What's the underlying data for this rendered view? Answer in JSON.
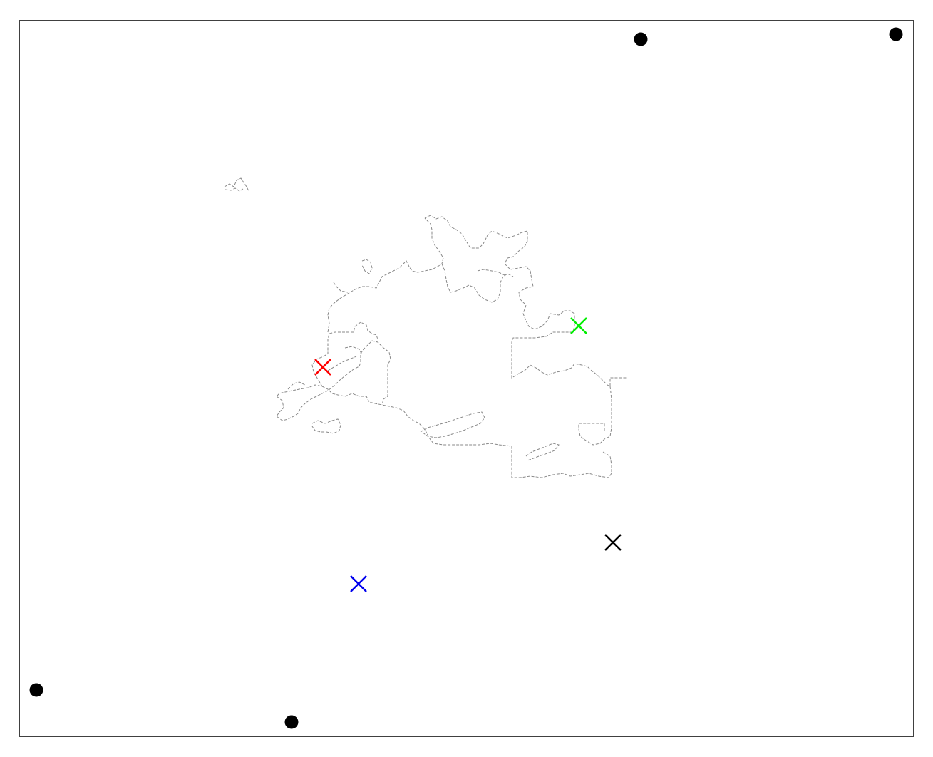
{
  "map": {
    "title": "",
    "frame_color": "#000000",
    "boundary_color": "#888888",
    "boundary_style": "dashed",
    "corner_markers": {
      "shape": "filled-circle",
      "color": "#000000",
      "count": 4
    },
    "cross_markers": [
      {
        "name": "red-cross-marker",
        "color": "#ff0000"
      },
      {
        "name": "green-cross-marker",
        "color": "#00ee00"
      },
      {
        "name": "black-cross-marker",
        "color": "#000000"
      },
      {
        "name": "blue-cross-marker",
        "color": "#0000ee"
      }
    ]
  }
}
